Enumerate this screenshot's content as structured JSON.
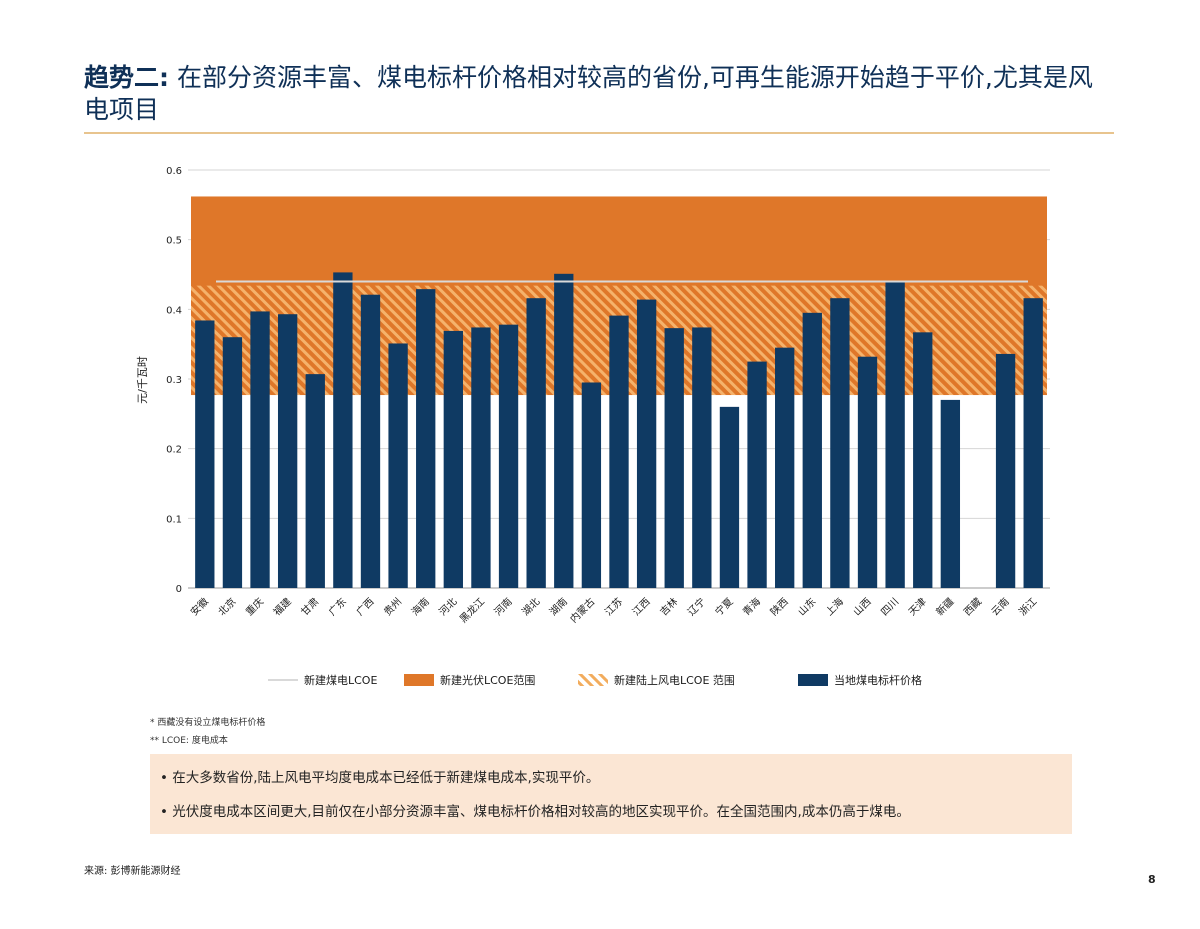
{
  "header": {
    "title_keyword": "趋势二:",
    "title_text": " 在部分资源丰富、煤电标杆价格相对较高的省份,可再生能源开始趋于平价,尤其是风电项目"
  },
  "chart_data": {
    "type": "bar",
    "ylabel": "元/千瓦时",
    "ylim": [
      0,
      0.6
    ],
    "yticks": [
      "0",
      "0.1",
      "0.2",
      "0.3",
      "0.4",
      "0.5",
      "0.6"
    ],
    "grid": true,
    "categories": [
      "安徽",
      "北京",
      "重庆",
      "福建",
      "甘肃",
      "广东",
      "广西",
      "贵州",
      "海南",
      "河北",
      "黑龙江",
      "河南",
      "湖北",
      "湖南",
      "内蒙古",
      "江苏",
      "江西",
      "吉林",
      "辽宁",
      "宁夏",
      "青海",
      "陕西",
      "山东",
      "上海",
      "山西",
      "四川",
      "天津",
      "新疆",
      "西藏",
      "云南",
      "浙江"
    ],
    "series": [
      {
        "name": "当地煤电标杆价格",
        "color": "#0f3a63",
        "values": [
          0.384,
          0.36,
          0.397,
          0.393,
          0.307,
          0.453,
          0.421,
          0.351,
          0.429,
          0.369,
          0.374,
          0.378,
          0.416,
          0.451,
          0.295,
          0.391,
          0.414,
          0.373,
          0.374,
          0.26,
          0.325,
          0.345,
          0.395,
          0.416,
          0.332,
          0.439,
          0.367,
          0.27,
          null,
          0.336,
          0.416
        ]
      }
    ],
    "coal_lcoe": {
      "name": "新建煤电LCOE",
      "value": 0.44,
      "color": "#d9d9d9"
    },
    "solar_range": {
      "name": "新建光伏LCOE范围",
      "min": 0.277,
      "max": 0.562,
      "color": "#df7729"
    },
    "wind_range": {
      "name": "新建陆上风电LCOE 范围",
      "min": 0.277,
      "max": 0.434,
      "color": "#f0a858"
    },
    "legend_position": "bottom"
  },
  "legend": {
    "coal": "新建煤电LCOE",
    "solar": "新建光伏LCOE范围",
    "wind": "新建陆上风电LCOE 范围",
    "bar": "当地煤电标杆价格"
  },
  "notes": {
    "note1": "* 西藏没有设立煤电标杆价格",
    "note2": "** LCOE: 度电成本"
  },
  "callout": {
    "point1": "• 在大多数省份,陆上风电平均度电成本已经低于新建煤电成本,实现平价。",
    "point2": "• 光伏度电成本区间更大,目前仅在小部分资源丰富、煤电标杆价格相对较高的地区实现平价。在全国范围内,成本仍高于煤电。"
  },
  "footer": {
    "source": "来源: 彭博新能源财经",
    "page_number": "8"
  }
}
